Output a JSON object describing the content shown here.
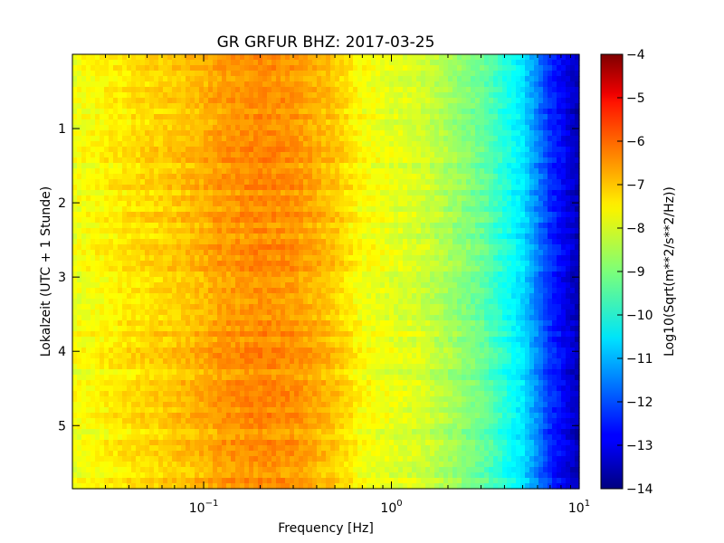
{
  "chart_data": {
    "type": "heatmap",
    "title": "GR GRFUR BHZ: 2017-03-25",
    "xlabel": "Frequency [Hz]",
    "ylabel": "Lokalzeit (UTC + 1 Stunde)",
    "x_scale": "log",
    "xlim": [
      0.02,
      10
    ],
    "ylim": [
      5.85,
      0
    ],
    "x_ticks": [
      {
        "value": 0.1,
        "base": "10",
        "exp": "−1"
      },
      {
        "value": 1,
        "base": "10",
        "exp": "0"
      },
      {
        "value": 10,
        "base": "10",
        "exp": "1"
      }
    ],
    "y_ticks": [
      {
        "value": 1,
        "label": "1"
      },
      {
        "value": 2,
        "label": "2"
      },
      {
        "value": 3,
        "label": "3"
      },
      {
        "value": 4,
        "label": "4"
      },
      {
        "value": 5,
        "label": "5"
      }
    ],
    "colorbar": {
      "label": "Log10(Sqrt(m**2/s**2/Hz))",
      "colormap": "jet",
      "range": [
        -14,
        -4
      ],
      "ticks": [
        {
          "value": -4,
          "label": "−4"
        },
        {
          "value": -5,
          "label": "−5"
        },
        {
          "value": -6,
          "label": "−6"
        },
        {
          "value": -7,
          "label": "−7"
        },
        {
          "value": -8,
          "label": "−8"
        },
        {
          "value": -9,
          "label": "−9"
        },
        {
          "value": -10,
          "label": "−10"
        },
        {
          "value": -11,
          "label": "−11"
        },
        {
          "value": -12,
          "label": "−12"
        },
        {
          "value": -13,
          "label": "−13"
        },
        {
          "value": -14,
          "label": "−14"
        }
      ]
    },
    "spectrum_profile": {
      "frequency_hz": [
        0.02,
        0.04,
        0.06,
        0.1,
        0.12,
        0.2,
        0.3,
        0.5,
        0.7,
        1.0,
        1.5,
        2.0,
        3.0,
        5.0,
        7.0,
        10.0
      ],
      "level": [
        -7.9,
        -7.5,
        -7.3,
        -7.0,
        -6.8,
        -6.6,
        -6.7,
        -7.2,
        -7.8,
        -8.0,
        -8.2,
        -8.6,
        -9.2,
        -10.5,
        -12.3,
        -13.5
      ]
    },
    "grid": false
  }
}
